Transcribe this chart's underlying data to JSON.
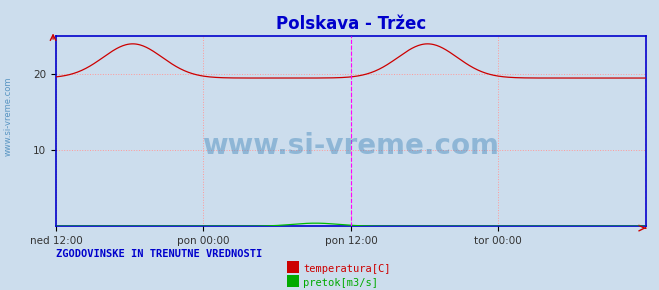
{
  "title": "Polskava - Tržec",
  "title_color": "#0000cc",
  "title_fontsize": 12,
  "bg_color": "#ccdded",
  "plot_bg_color": "#ccdded",
  "outer_bg_color": "#ccdded",
  "ylim": [
    0,
    25
  ],
  "yticks": [
    10,
    20
  ],
  "grid_color": "#ff9999",
  "grid_linestyle": ":",
  "grid_linewidth": 0.7,
  "x_tick_labels": [
    "ned 12:00",
    "pon 00:00",
    "pon 12:00",
    "tor 00:00"
  ],
  "x_tick_positions": [
    0.0,
    0.25,
    0.5,
    0.75
  ],
  "border_color": "#0000cc",
  "border_linewidth": 1.2,
  "vline_color": "#ff00ff",
  "vline_positions": [
    0.5,
    1.0
  ],
  "watermark_text": "www.si-vreme.com",
  "watermark_color": "#4488bb",
  "watermark_alpha": 0.45,
  "watermark_fontsize": 20,
  "sidebar_text": "www.si-vreme.com",
  "sidebar_color": "#4488bb",
  "legend_title": "ZGODOVINSKE IN TRENUTNE VREDNOSTI",
  "legend_title_color": "#0000cc",
  "legend_entries": [
    "temperatura[C]",
    "pretok[m3/s]"
  ],
  "legend_colors": [
    "#cc0000",
    "#00aa00"
  ],
  "temp_color": "#cc0000",
  "pretok_color": "#00bb00",
  "arrow_color": "#cc0000",
  "num_points": 576
}
